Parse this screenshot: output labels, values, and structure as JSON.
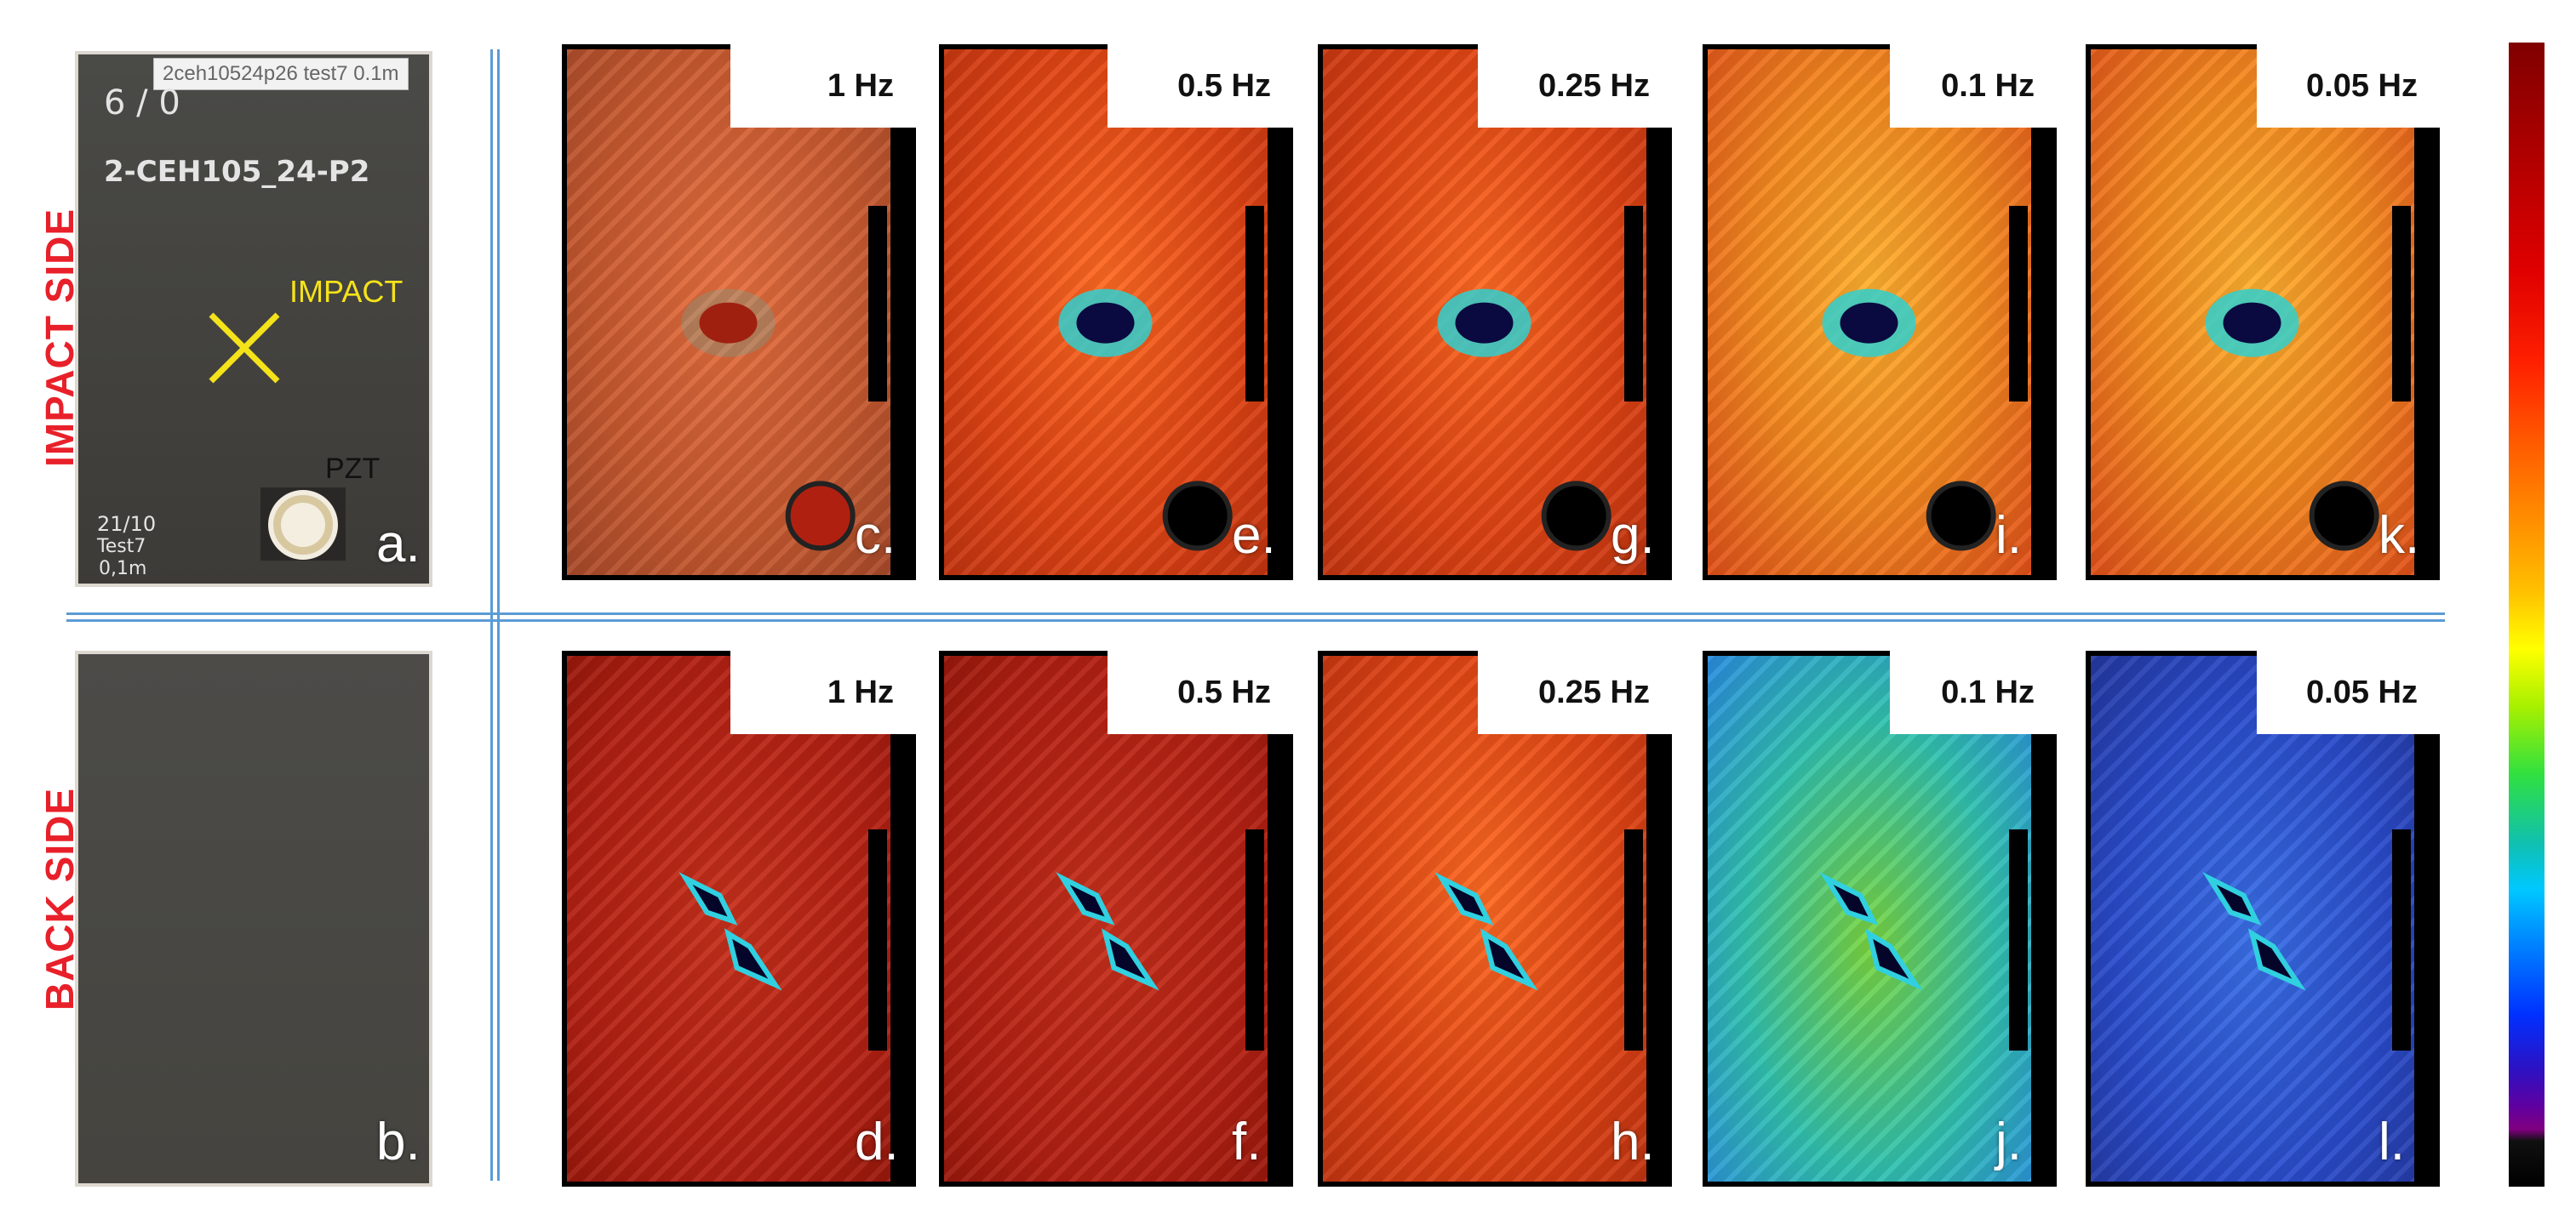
{
  "rows": {
    "impact_side": "IMPACT SIDE",
    "back_side": "BACK SIDE"
  },
  "photo_a": {
    "label": "a.",
    "tag_text": "2ceh10524p26 test7 0.1m",
    "chalk_top": "6 / 0",
    "chalk_id": "2-CEH105_24-P2",
    "chalk_date": "21/10",
    "chalk_test": "Test7",
    "chalk_height": "0,1m",
    "impact_text": "IMPACT",
    "pzt_text": "PZT"
  },
  "photo_b": {
    "label": "b."
  },
  "impact_panels": [
    {
      "freq": "1 Hz",
      "label": "c.",
      "palette": "noisy"
    },
    {
      "freq": "0.5 Hz",
      "label": "e.",
      "palette": "red"
    },
    {
      "freq": "0.25 Hz",
      "label": "g.",
      "palette": "red"
    },
    {
      "freq": "0.1 Hz",
      "label": "i.",
      "palette": "orange"
    },
    {
      "freq": "0.05 Hz",
      "label": "k.",
      "palette": "orange"
    }
  ],
  "back_panels": [
    {
      "freq": "1 Hz",
      "label": "d.",
      "palette": "darkred"
    },
    {
      "freq": "0.5 Hz",
      "label": "f.",
      "palette": "darkred"
    },
    {
      "freq": "0.25 Hz",
      "label": "h.",
      "palette": "red"
    },
    {
      "freq": "0.1 Hz",
      "label": "j.",
      "palette": "green"
    },
    {
      "freq": "0.05 Hz",
      "label": "l.",
      "palette": "blue"
    }
  ],
  "colors": {
    "row_label": "#e8202a",
    "separator": "#5b9bd5",
    "impact_mark": "#f4e21a"
  }
}
